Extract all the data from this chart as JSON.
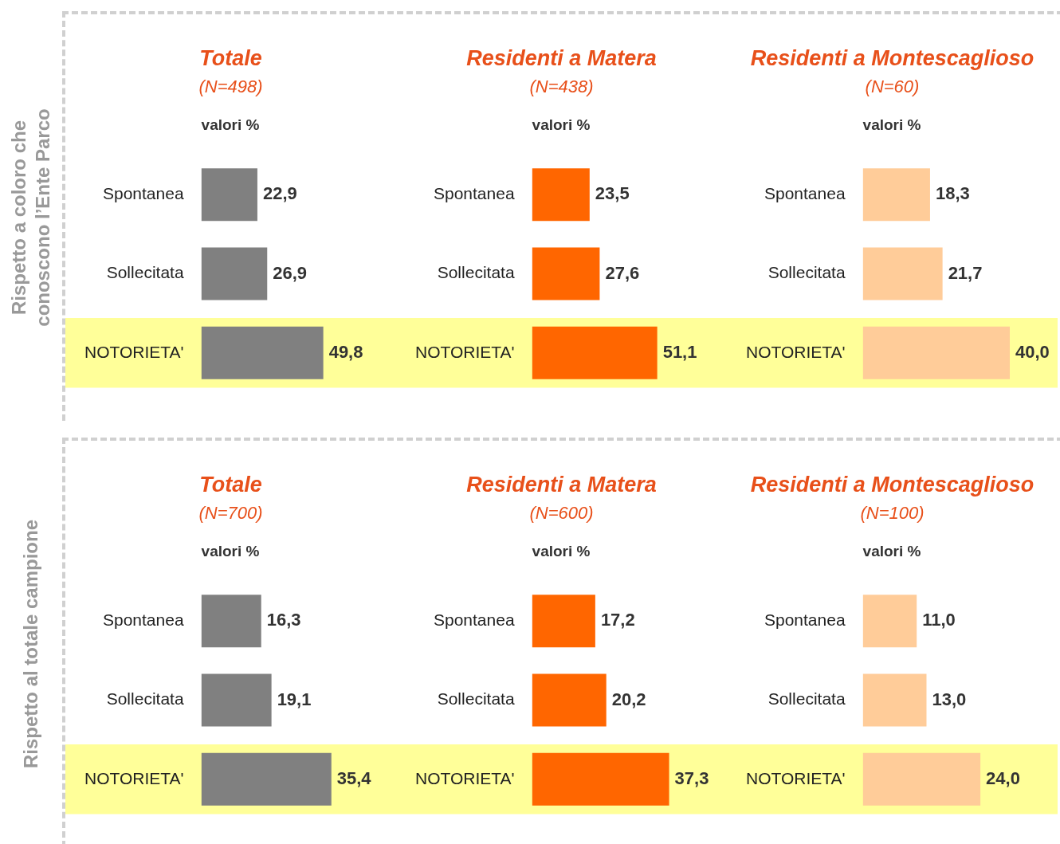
{
  "chart_data": [
    {
      "type": "bar",
      "orientation": "horizontal",
      "title": "Totale",
      "subtitle": "(N=498)",
      "annotations": [
        "valori %",
        "Rispetto a coloro che conoscono l’Ente Parco"
      ],
      "categories": [
        "Spontanea",
        "Sollecitata",
        "NOTORIETA'"
      ],
      "values": [
        22.9,
        26.9,
        49.8
      ],
      "value_labels": [
        "22,9",
        "26,9",
        "49,8"
      ],
      "color": "#808080",
      "tick_labels": "y",
      "bands": [
        {
          "axis": "y",
          "from": "NOTORIETA'",
          "to": "NOTORIETA'",
          "color": "#ffff99"
        }
      ]
    },
    {
      "type": "bar",
      "orientation": "horizontal",
      "title": "Residenti a Matera",
      "subtitle": "(N=438)",
      "annotations": [
        "valori %"
      ],
      "categories": [
        "Spontanea",
        "Sollecitata",
        "NOTORIETA'"
      ],
      "values": [
        23.5,
        27.6,
        51.1
      ],
      "value_labels": [
        "23,5",
        "27,6",
        "51,1"
      ],
      "color": "#ff6600",
      "tick_labels": "y",
      "bands": [
        {
          "axis": "y",
          "from": "NOTORIETA'",
          "to": "NOTORIETA'",
          "color": "#ffff99"
        }
      ]
    },
    {
      "type": "bar",
      "orientation": "horizontal",
      "title": "Residenti a Montescaglioso",
      "subtitle": "(N=60)",
      "annotations": [
        "valori %"
      ],
      "categories": [
        "Spontanea",
        "Sollecitata",
        "NOTORIETA'"
      ],
      "values": [
        18.3,
        21.7,
        40.0
      ],
      "value_labels": [
        "18,3",
        "21,7",
        "40,0"
      ],
      "color": "#ffcc99",
      "tick_labels": "y",
      "bands": [
        {
          "axis": "y",
          "from": "NOTORIETA'",
          "to": "NOTORIETA'",
          "color": "#ffff99"
        }
      ]
    },
    {
      "type": "bar",
      "orientation": "horizontal",
      "title": "Totale",
      "subtitle": "(N=700)",
      "annotations": [
        "valori %",
        "Rispetto al totale campione"
      ],
      "categories": [
        "Spontanea",
        "Sollecitata",
        "NOTORIETA'"
      ],
      "values": [
        16.3,
        19.1,
        35.4
      ],
      "value_labels": [
        "16,3",
        "19,1",
        "35,4"
      ],
      "color": "#808080",
      "tick_labels": "y",
      "bands": [
        {
          "axis": "y",
          "from": "NOTORIETA'",
          "to": "NOTORIETA'",
          "color": "#ffff99"
        }
      ]
    },
    {
      "type": "bar",
      "orientation": "horizontal",
      "title": "Residenti a Matera",
      "subtitle": "(N=600)",
      "annotations": [
        "valori %"
      ],
      "categories": [
        "Spontanea",
        "Sollecitata",
        "NOTORIETA'"
      ],
      "values": [
        17.2,
        20.2,
        37.3
      ],
      "value_labels": [
        "17,2",
        "20,2",
        "37,3"
      ],
      "color": "#ff6600",
      "tick_labels": "y",
      "bands": [
        {
          "axis": "y",
          "from": "NOTORIETA'",
          "to": "NOTORIETA'",
          "color": "#ffff99"
        }
      ]
    },
    {
      "type": "bar",
      "orientation": "horizontal",
      "title": "Residenti a Montescaglioso",
      "subtitle": "(N=100)",
      "annotations": [
        "valori %"
      ],
      "categories": [
        "Spontanea",
        "Sollecitata",
        "NOTORIETA'"
      ],
      "values": [
        11.0,
        13.0,
        24.0
      ],
      "value_labels": [
        "11,0",
        "13,0",
        "24,0"
      ],
      "color": "#ffcc99",
      "tick_labels": "y",
      "bands": [
        {
          "axis": "y",
          "from": "NOTORIETA'",
          "to": "NOTORIETA'",
          "color": "#ffff99"
        }
      ]
    }
  ]
}
